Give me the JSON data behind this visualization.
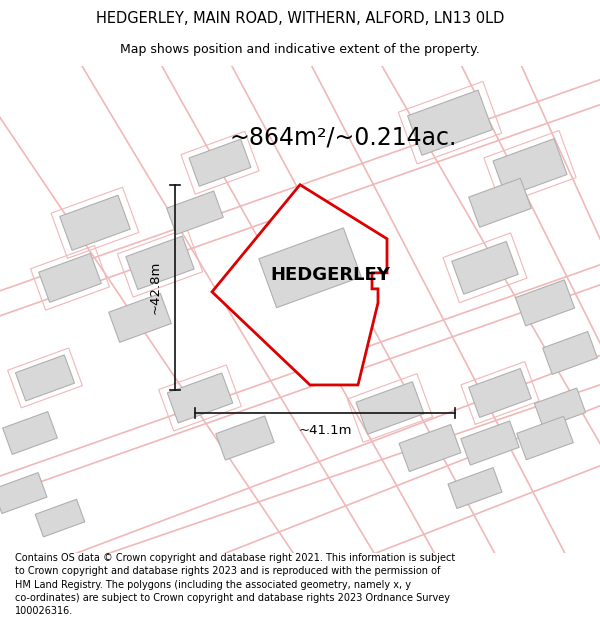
{
  "title_line1": "HEDGERLEY, MAIN ROAD, WITHERN, ALFORD, LN13 0LD",
  "title_line2": "Map shows position and indicative extent of the property.",
  "area_text": "~864m²/~0.214ac.",
  "property_label": "HEDGERLEY",
  "width_label": "~41.1m",
  "height_label": "~42.8m",
  "footer": "Contains OS data © Crown copyright and database right 2021. This information is subject to Crown copyright and database rights 2023 and is reproduced with the permission of HM Land Registry. The polygons (including the associated geometry, namely x, y co-ordinates) are subject to Crown copyright and database rights 2023 Ordnance Survey 100026316.",
  "bg_color": "#ffffff",
  "road_color": "#f0b8b8",
  "building_fill": "#d8d8d8",
  "building_edge": "#b0b0b0",
  "property_outline_color": "#dd0000",
  "dim_color": "#111111",
  "road_line_lw": 0.8,
  "road_plot_lw": 1.2,
  "map_rotation_deg": 20
}
